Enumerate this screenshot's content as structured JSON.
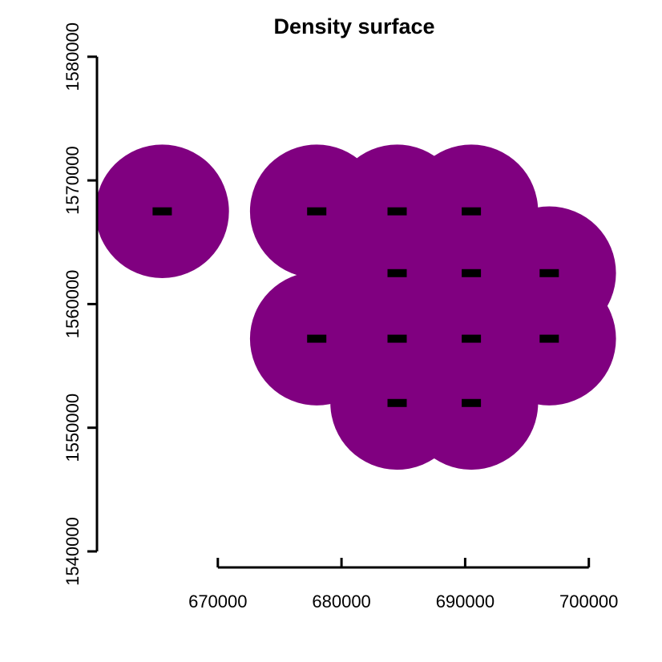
{
  "chart_data": {
    "type": "heatmap",
    "title": "Density surface",
    "xlabel": "",
    "ylabel": "",
    "xlim": [
      660000,
      702000
    ],
    "ylim": [
      1540000,
      1580000
    ],
    "x_ticks": [
      670000,
      680000,
      690000,
      700000
    ],
    "y_ticks": [
      1540000,
      1550000,
      1560000,
      1570000,
      1580000
    ],
    "x_tick_labels": [
      "670000",
      "680000",
      "690000",
      "700000"
    ],
    "y_tick_labels": [
      "1540000",
      "1550000",
      "1560000",
      "1570000",
      "1580000"
    ],
    "surface_color": "#800080",
    "point_color": "#000000",
    "buffer_radius": 5400,
    "points": [
      {
        "x": 665500,
        "y": 1567500
      },
      {
        "x": 678000,
        "y": 1567500
      },
      {
        "x": 684500,
        "y": 1567500
      },
      {
        "x": 690500,
        "y": 1567500
      },
      {
        "x": 684500,
        "y": 1562500
      },
      {
        "x": 690500,
        "y": 1562500
      },
      {
        "x": 696800,
        "y": 1562500
      },
      {
        "x": 678000,
        "y": 1557200
      },
      {
        "x": 684500,
        "y": 1557200
      },
      {
        "x": 690500,
        "y": 1557200
      },
      {
        "x": 696800,
        "y": 1557200
      },
      {
        "x": 684500,
        "y": 1552000
      },
      {
        "x": 690500,
        "y": 1552000
      }
    ]
  }
}
